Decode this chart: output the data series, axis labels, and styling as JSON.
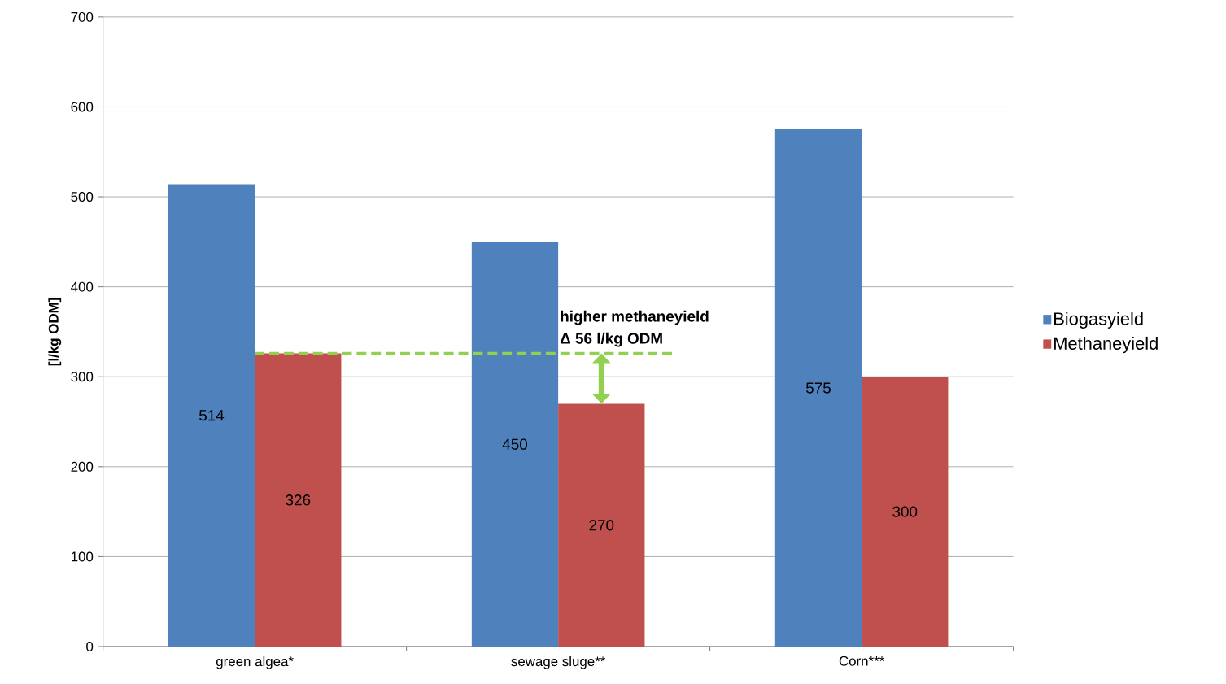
{
  "chart_data": {
    "type": "bar",
    "ylabel": "[l/kg ODM]",
    "categories": [
      "green algea*",
      "sewage sluge**",
      "Corn***"
    ],
    "series": [
      {
        "name": "Biogasyield",
        "color": "#4f81bd",
        "values": [
          514,
          450,
          575
        ]
      },
      {
        "name": "Methaneyield",
        "color": "#c0504d",
        "values": [
          326,
          270,
          300
        ]
      }
    ],
    "ylim": [
      0,
      700
    ],
    "yticks": [
      0,
      100,
      200,
      300,
      400,
      500,
      600,
      700
    ],
    "grid": "y",
    "legend": "right",
    "data_labels": true,
    "annotations": [
      {
        "text": "higher methaneyield",
        "x": "sewage sluge**",
        "y": 326
      },
      "Δ 56 l/kg ODM"
    ]
  }
}
